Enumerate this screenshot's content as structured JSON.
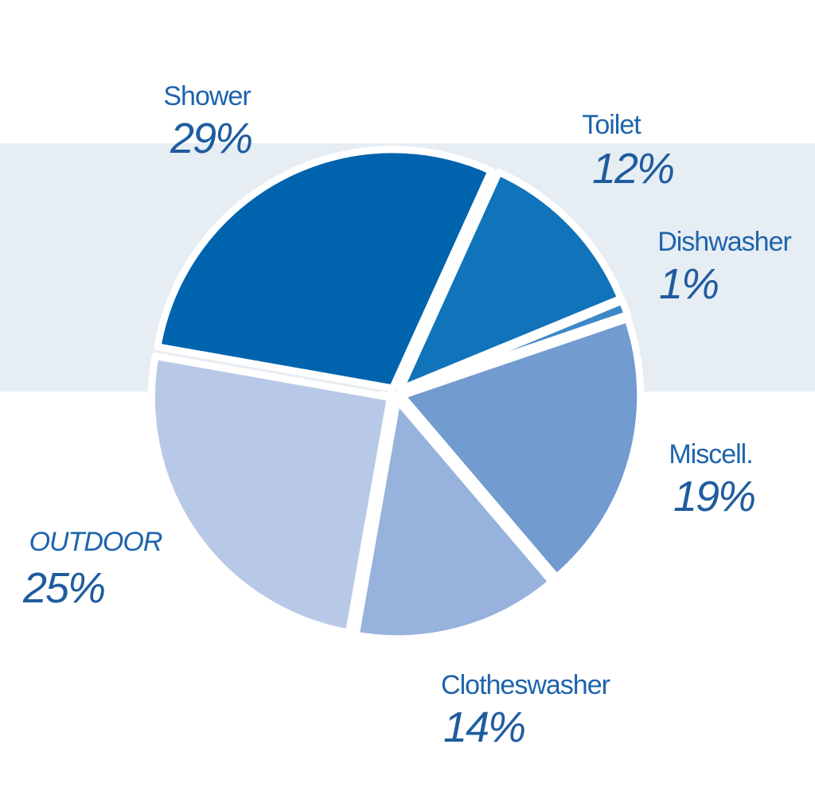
{
  "chart_data": {
    "type": "pie",
    "categories": [
      "Shower",
      "Toilet",
      "Dishwasher",
      "Miscell.",
      "Clotheswasher",
      "OUTDOOR"
    ],
    "values": [
      29,
      12,
      1,
      19,
      14,
      25
    ],
    "value_labels": [
      "29%",
      "12%",
      "1%",
      "19%",
      "14%",
      "25%"
    ],
    "colors": [
      "#0063ad",
      "#1173b9",
      "#3d88c8",
      "#729bcf",
      "#97b2dc",
      "#b8c9e7"
    ]
  }
}
